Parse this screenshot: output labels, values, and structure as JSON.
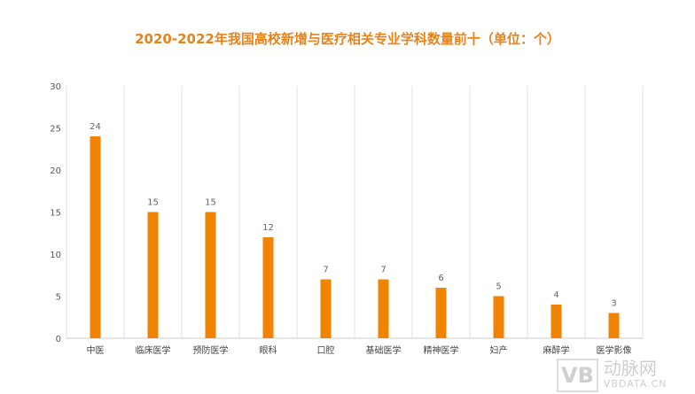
{
  "chart_data": {
    "type": "bar",
    "title": "2020-2022年我国高校新增与医疗相关专业学科数量前十（单位：个）",
    "categories": [
      "中医",
      "临床医学",
      "预防医学",
      "眼科",
      "口腔",
      "基础医学",
      "精神医学",
      "妇产",
      "麻醉学",
      "医学影像"
    ],
    "values": [
      24,
      15,
      15,
      12,
      7,
      7,
      6,
      5,
      4,
      3
    ],
    "yticks": [
      0,
      5,
      10,
      15,
      20,
      25,
      30
    ],
    "ylim": [
      0,
      30
    ],
    "xlabel": "",
    "ylabel": "",
    "grid": "vertical category separators",
    "data_labels": true,
    "bar_color": "#f08300",
    "title_color": "#e8831a"
  },
  "watermark": {
    "logo": "VB",
    "cn": "动脉网",
    "en": "VBDATA.CN"
  }
}
